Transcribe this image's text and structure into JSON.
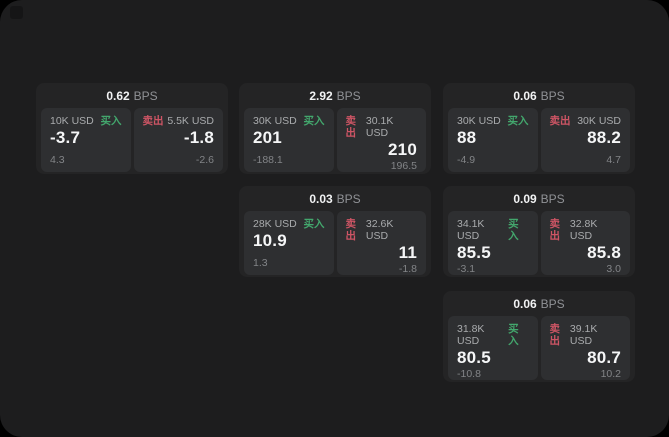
{
  "labels": {
    "bps_unit": "BPS",
    "buy": "买入",
    "sell": "卖出"
  },
  "colors": {
    "background": "#000000",
    "surface": "#1d1d1e",
    "card": "#242425",
    "panel": "#2e2f31",
    "buy_green": "#43a76d",
    "sell_red": "#ce5565",
    "primary_text": "#f5f6f7",
    "muted_text": "#828487"
  },
  "cards": [
    {
      "bps": "0.62",
      "buy": {
        "amount": "10K USD",
        "price": "-3.7",
        "change": "4.3"
      },
      "sell": {
        "amount": "5.5K USD",
        "price": "-1.8",
        "change": "-2.6"
      }
    },
    {
      "bps": "2.92",
      "buy": {
        "amount": "30K USD",
        "price": "201",
        "change": "-188.1"
      },
      "sell": {
        "amount": "30.1K USD",
        "price": "210",
        "change": "196.5"
      }
    },
    {
      "bps": "0.06",
      "buy": {
        "amount": "30K USD",
        "price": "88",
        "change": "-4.9"
      },
      "sell": {
        "amount": "30K USD",
        "price": "88.2",
        "change": "4.7"
      }
    },
    {
      "bps": "0.03",
      "buy": {
        "amount": "28K USD",
        "price": "10.9",
        "change": "1.3"
      },
      "sell": {
        "amount": "32.6K USD",
        "price": "11",
        "change": "-1.8"
      }
    },
    {
      "bps": "0.09",
      "buy": {
        "amount": "34.1K USD",
        "price": "85.5",
        "change": "-3.1"
      },
      "sell": {
        "amount": "32.8K USD",
        "price": "85.8",
        "change": "3.0"
      }
    },
    {
      "bps": "0.06",
      "buy": {
        "amount": "31.8K USD",
        "price": "80.5",
        "change": "-10.8"
      },
      "sell": {
        "amount": "39.1K USD",
        "price": "80.7",
        "change": "10.2"
      }
    }
  ]
}
